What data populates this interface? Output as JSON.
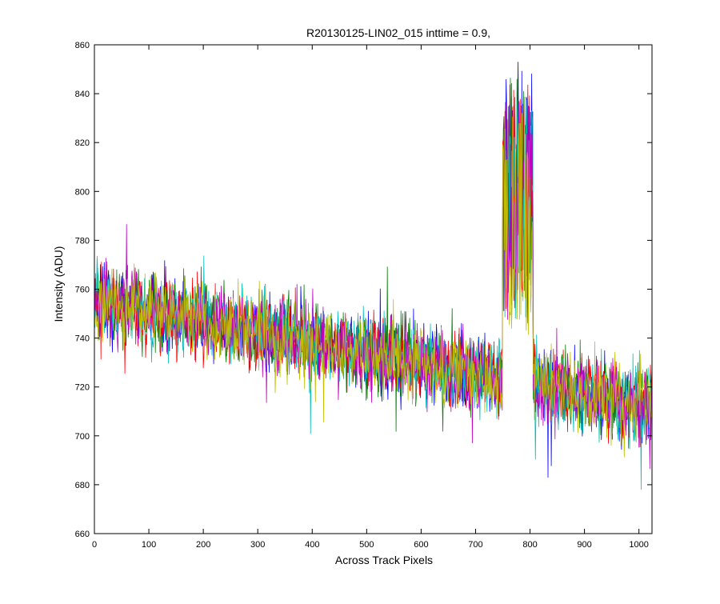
{
  "chart_data": {
    "type": "line",
    "title": "R20130125-LIN02_015 inttime = 0.9,",
    "xlabel": "Across Track Pixels",
    "ylabel": "Intensity (ADU)",
    "xlim": [
      0,
      1024
    ],
    "ylim": [
      660,
      860
    ],
    "xticks": [
      0,
      100,
      200,
      300,
      400,
      500,
      600,
      700,
      800,
      900,
      1000
    ],
    "yticks": [
      660,
      680,
      700,
      720,
      740,
      760,
      780,
      800,
      820,
      840,
      860
    ],
    "grid": false,
    "legend": "none",
    "baseline_trend": {
      "x": [
        0,
        1024
      ],
      "y": [
        755,
        712
      ]
    },
    "noise_amplitude": 14,
    "spike_region": {
      "x_range": [
        750,
        805
      ],
      "y_range": [
        740,
        858
      ]
    },
    "series": [
      {
        "color": "#0000ff"
      },
      {
        "color": "#008000"
      },
      {
        "color": "#ff0000"
      },
      {
        "color": "#00bfbf"
      },
      {
        "color": "#bf00bf"
      },
      {
        "color": "#bfbf00"
      }
    ]
  }
}
